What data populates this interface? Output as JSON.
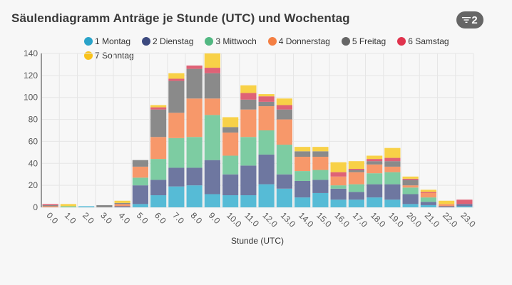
{
  "header": {
    "title": "Säulendiagramm Anträge je Stunde (UTC) und Wochentag",
    "filter_count": "2",
    "filter_icon": "filter-icon"
  },
  "chart_data": {
    "type": "bar",
    "stacked": true,
    "title": "Säulendiagramm Anträge je Stunde (UTC) und Wochentag",
    "xlabel": "Stunde (UTC)",
    "ylabel": "",
    "ylim": [
      0,
      140
    ],
    "yticks": [
      0,
      20,
      40,
      60,
      80,
      100,
      120,
      140
    ],
    "grid": true,
    "legend_position": "top",
    "categories": [
      "0.0",
      "1.0",
      "2.0",
      "3.0",
      "4.0",
      "5.0",
      "6.0",
      "7.0",
      "8.0",
      "9.0",
      "10.0",
      "11.0",
      "12.0",
      "13.0",
      "14.0",
      "15.0",
      "16.0",
      "17.0",
      "18.0",
      "19.0",
      "20.0",
      "21.0",
      "22.0",
      "23.0"
    ],
    "series": [
      {
        "name": "1 Montag",
        "color": "#2aa3c9",
        "bar_color": "#56bbd6",
        "values": [
          0,
          0,
          1,
          0,
          0,
          3,
          11,
          19,
          20,
          12,
          11,
          11,
          21,
          17,
          9,
          13,
          7,
          7,
          9,
          7,
          3,
          2,
          0,
          1
        ]
      },
      {
        "name": "2 Dienstag",
        "color": "#3d4a7f",
        "bar_color": "#6e77a0",
        "values": [
          0,
          0,
          0,
          0,
          1,
          17,
          14,
          17,
          16,
          31,
          19,
          27,
          27,
          13,
          15,
          12,
          10,
          7,
          12,
          14,
          9,
          3,
          1,
          2
        ]
      },
      {
        "name": "3 Mittwoch",
        "color": "#52b882",
        "bar_color": "#7dcca2",
        "values": [
          0,
          1,
          0,
          0,
          0,
          7,
          19,
          27,
          28,
          41,
          17,
          26,
          22,
          27,
          9,
          9,
          3,
          7,
          10,
          11,
          6,
          4,
          0,
          0
        ]
      },
      {
        "name": "4 Donnerstag",
        "color": "#f47f43",
        "bar_color": "#f7986a",
        "values": [
          1,
          0,
          0,
          0,
          2,
          10,
          20,
          23,
          35,
          15,
          21,
          25,
          22,
          23,
          13,
          12,
          8,
          11,
          8,
          5,
          2,
          4,
          2,
          0
        ]
      },
      {
        "name": "5 Freitag",
        "color": "#666666",
        "bar_color": "#8a8a8a",
        "values": [
          1,
          0,
          0,
          2,
          1,
          6,
          25,
          29,
          27,
          23,
          5,
          9,
          4,
          9,
          5,
          5,
          0,
          2,
          3,
          5,
          5,
          0,
          0,
          0
        ]
      },
      {
        "name": "6 Samstag",
        "color": "#e0334d",
        "bar_color": "#df6276",
        "values": [
          1,
          0,
          0,
          0,
          0,
          0,
          2,
          2,
          3,
          5,
          0,
          6,
          5,
          4,
          0,
          0,
          4,
          1,
          2,
          3,
          1,
          1,
          0,
          4
        ]
      },
      {
        "name": "7 Sonntag",
        "color": "#f8c21b",
        "bar_color": "#f8d147",
        "values": [
          0,
          2,
          0,
          0,
          2,
          0,
          2,
          5,
          0,
          13,
          9,
          7,
          2,
          6,
          4,
          4,
          9,
          7,
          3,
          9,
          2,
          2,
          3,
          0
        ]
      }
    ]
  }
}
